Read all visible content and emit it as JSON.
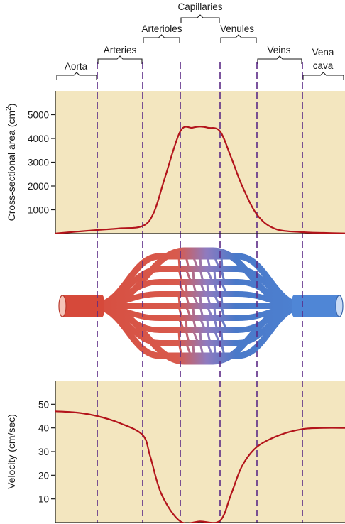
{
  "colors": {
    "panel_background": "#f3e6bf",
    "curve": "#b3141b",
    "divider": "#5b2a86",
    "arterial": "#d6493a",
    "venous": "#4a79c9"
  },
  "segments": [
    {
      "key": "aorta",
      "lines": [
        "Aorta"
      ]
    },
    {
      "key": "arteries",
      "lines": [
        "Arteries"
      ]
    },
    {
      "key": "arterioles",
      "lines": [
        "Arterioles"
      ]
    },
    {
      "key": "capillaries",
      "lines": [
        "Capillaries"
      ]
    },
    {
      "key": "venules",
      "lines": [
        "Venules"
      ]
    },
    {
      "key": "veins",
      "lines": [
        "Veins"
      ]
    },
    {
      "key": "vena_cava",
      "lines": [
        "Vena",
        "cava"
      ]
    }
  ],
  "chart_data": [
    {
      "type": "line",
      "ylabel": "Cross-sectional area (cm²)",
      "ylabel_parts": {
        "text": "Cross-sectional area (cm",
        "superscript": "2",
        "suffix": ")"
      },
      "yticks": [
        1000,
        2000,
        3000,
        4000,
        5000
      ],
      "ylim": [
        0,
        6000
      ],
      "x_segments": [
        "Aorta",
        "Arteries",
        "Arterioles",
        "Capillaries",
        "Venules",
        "Veins",
        "Vena cava"
      ],
      "grid": false,
      "series": [
        {
          "x": [
            0,
            0.5,
            1.0,
            1.5,
            2.0,
            2.3,
            2.6,
            3.0,
            3.3,
            3.5,
            3.7,
            4.0,
            4.3,
            4.6,
            5.0,
            5.4,
            6.0,
            6.5,
            7.0
          ],
          "y": [
            5,
            80,
            150,
            220,
            320,
            900,
            2400,
            4300,
            4450,
            4500,
            4450,
            4300,
            3200,
            2000,
            800,
            200,
            60,
            30,
            10
          ]
        }
      ]
    },
    {
      "type": "line",
      "ylabel": "Velocity (cm/sec)",
      "yticks": [
        10,
        20,
        30,
        40,
        50
      ],
      "ylim": [
        0,
        60
      ],
      "x_segments": [
        "Aorta",
        "Arteries",
        "Arterioles",
        "Capillaries",
        "Venules",
        "Veins",
        "Vena cava"
      ],
      "grid": false,
      "series": [
        {
          "x": [
            0,
            0.5,
            1.0,
            1.5,
            2.0,
            2.2,
            2.5,
            3.0,
            3.5,
            4.0,
            4.3,
            4.6,
            5.0,
            5.5,
            6.0,
            6.5,
            7.0
          ],
          "y": [
            47,
            46.5,
            45,
            42,
            37,
            28,
            12,
            0.5,
            0.5,
            0.8,
            12,
            24,
            32,
            37,
            39.5,
            40,
            40
          ]
        }
      ]
    }
  ]
}
